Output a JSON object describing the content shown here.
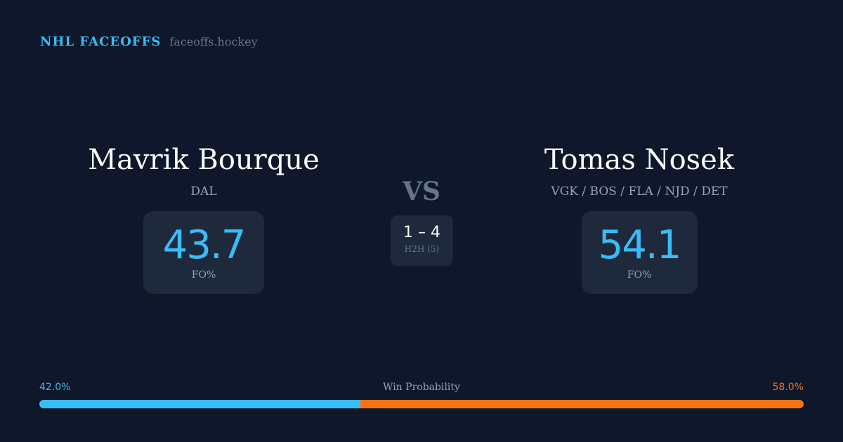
{
  "brand": {
    "title": "NHL FACEOFFS",
    "url": "faceoffs.hockey"
  },
  "left": {
    "name": "Mavrik Bourque",
    "team": "DAL",
    "fo_pct": "43.7",
    "fo_label": "FO%",
    "win_prob": "42.0%",
    "win_prob_value": 42.0
  },
  "right": {
    "name": "Tomas Nosek",
    "team": "VGK / BOS / FLA / NJD / DET",
    "fo_pct": "54.1",
    "fo_label": "FO%",
    "win_prob": "58.0%",
    "win_prob_value": 58.0
  },
  "vs": "VS",
  "h2h": {
    "score": "1 – 4",
    "label": "H2H (5)"
  },
  "win_probability_label": "Win Probability",
  "colors": {
    "left": "#38bdf8",
    "right": "#f97316"
  }
}
